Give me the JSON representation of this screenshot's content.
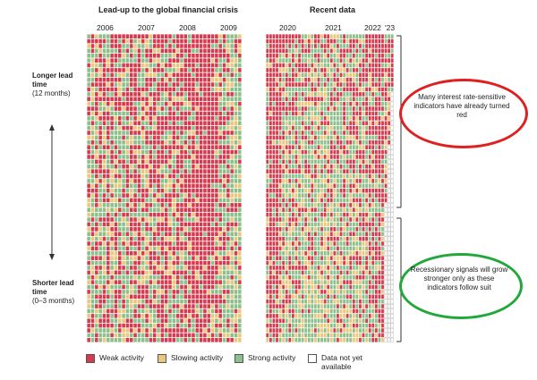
{
  "chart_data": {
    "type": "heatmap",
    "panels": [
      {
        "title": "Lead-up to the global financial crisis",
        "x_tick_labels": [
          "2006",
          "2007",
          "2008",
          "2009"
        ],
        "columns": 40,
        "rows": 64,
        "red_density_by_column": [
          0.3,
          0.32,
          0.35,
          0.34,
          0.38,
          0.4,
          0.36,
          0.34,
          0.33,
          0.35,
          0.38,
          0.4,
          0.42,
          0.4,
          0.38,
          0.39,
          0.42,
          0.45,
          0.5,
          0.52,
          0.55,
          0.56,
          0.5,
          0.47,
          0.5,
          0.55,
          0.58,
          0.62,
          0.72,
          0.8,
          0.85,
          0.82,
          0.7,
          0.55,
          0.45,
          0.35,
          0.28,
          0.2,
          0.15,
          0.12
        ],
        "red_density_top_boost": 0.15
      },
      {
        "title": "Recent data",
        "x_tick_labels": [
          "2020",
          "2021",
          "2022",
          "'23"
        ],
        "columns": 40,
        "rows": 64,
        "red_density_by_column": [
          0.5,
          0.65,
          0.78,
          0.7,
          0.35,
          0.25,
          0.22,
          0.2,
          0.18,
          0.16,
          0.15,
          0.14,
          0.12,
          0.12,
          0.12,
          0.11,
          0.1,
          0.1,
          0.1,
          0.1,
          0.12,
          0.12,
          0.14,
          0.15,
          0.15,
          0.16,
          0.18,
          0.2,
          0.22,
          0.25,
          0.3,
          0.35,
          0.4,
          0.45,
          0.5,
          0.55,
          0.55,
          0.6,
          0.6,
          0.6
        ],
        "red_density_top_boost": 0.3,
        "not_yet_available_from_column": 37
      }
    ],
    "y_axis": {
      "top_label": "Longer lead time",
      "top_sublabel": "(12 months)",
      "bottom_label": "Shorter lead time",
      "bottom_sublabel": "(0–3 months)"
    },
    "legend": [
      {
        "label": "Weak activity",
        "color": "#d63a4e"
      },
      {
        "label": "Slowing activity",
        "color": "#ebc77c"
      },
      {
        "label": "Strong activity",
        "color": "#8dbf8a"
      },
      {
        "label": "Data not yet available",
        "color": "#ffffff"
      }
    ],
    "annotations": [
      {
        "text": "Many interest rate-sensitive indicators have already turned red",
        "circle_color": "#e02020"
      },
      {
        "text": "Recessionary signals will grow stronger only as these indicators follow suit",
        "circle_color": "#22a83a"
      }
    ]
  },
  "colors": {
    "weak": "#d63a4e",
    "slowing": "#ebc77c",
    "strong": "#8dbf8a",
    "unavailable": "#ffffff",
    "grid_line": "#ffffff",
    "bracket": "#333333"
  }
}
